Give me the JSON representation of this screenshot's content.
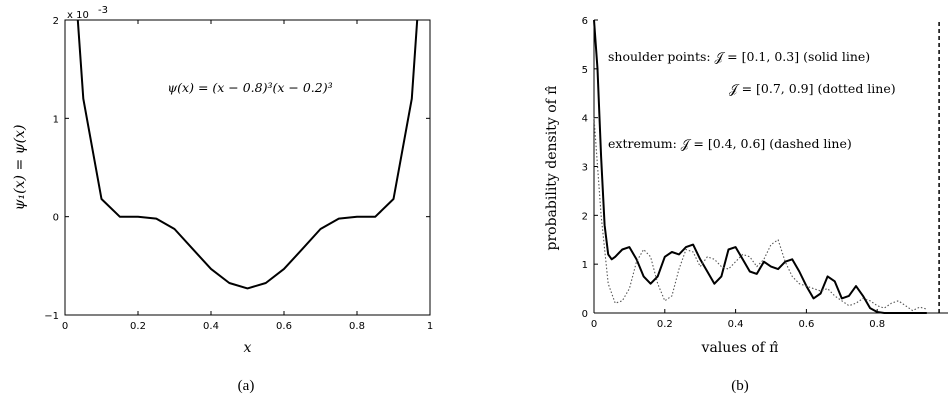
{
  "chart_data": [
    {
      "type": "line",
      "caption": "(a)",
      "xlabel": "x",
      "ylabel": "ψ₁(x) = ψ(x)",
      "xlim": [
        0,
        1
      ],
      "ylim": [
        -0.001,
        0.002
      ],
      "y_multiplier_label": "x 10",
      "y_multiplier_exp": "-3",
      "x_ticks": [
        "0",
        "0.2",
        "0.4",
        "0.6",
        "0.8",
        "1"
      ],
      "y_ticks": [
        "−1",
        "0",
        "1",
        "2"
      ],
      "annotation": "ψ(x) = (x − 0.8)³(x − 0.2)³",
      "grid": false,
      "series": [
        {
          "style": "solid",
          "x": [
            0.035,
            0.05,
            0.1,
            0.15,
            0.2,
            0.25,
            0.3,
            0.35,
            0.4,
            0.45,
            0.5,
            0.55,
            0.6,
            0.65,
            0.7,
            0.75,
            0.8,
            0.85,
            0.9,
            0.95,
            0.965
          ],
          "y": [
            0.002,
            0.0012,
            0.00018,
            0.0,
            0.0,
            -2e-05,
            -0.000125,
            -0.00033,
            -0.000531,
            -0.000675,
            -0.000729,
            -0.000675,
            -0.000531,
            -0.00033,
            -0.000125,
            -2e-05,
            0.0,
            0.0,
            0.00018,
            0.0012,
            0.002
          ]
        }
      ]
    },
    {
      "type": "line",
      "caption": "(b)",
      "xlabel": "values of π̂",
      "ylabel": "probability density of π̂",
      "xlim": [
        0,
        1
      ],
      "ylim": [
        0,
        6
      ],
      "x_ticks": [
        "0",
        "0.2",
        "0.4",
        "0.6",
        "0.8"
      ],
      "y_ticks": [
        "0",
        "1",
        "2",
        "3",
        "4",
        "5",
        "6"
      ],
      "annotations": [
        "shoulder points: 𝒥 = [0.1, 0.3] (solid line)",
        "𝒥 = [0.7, 0.9] (dotted line)",
        "extremum: 𝒥 = [0.4, 0.6] (dashed line)"
      ],
      "grid": false,
      "series": [
        {
          "style": "solid",
          "x": [
            0.0,
            0.01,
            0.02,
            0.03,
            0.04,
            0.05,
            0.06,
            0.08,
            0.1,
            0.12,
            0.14,
            0.16,
            0.18,
            0.2,
            0.22,
            0.24,
            0.26,
            0.28,
            0.3,
            0.32,
            0.34,
            0.36,
            0.38,
            0.4,
            0.42,
            0.44,
            0.46,
            0.48,
            0.5,
            0.52,
            0.54,
            0.56,
            0.58,
            0.6,
            0.62,
            0.64,
            0.66,
            0.68,
            0.7,
            0.72,
            0.74,
            0.76,
            0.78,
            0.8,
            0.82,
            0.84,
            0.86,
            0.88,
            0.9,
            0.92,
            0.94
          ],
          "y": [
            6.0,
            5.0,
            3.2,
            1.8,
            1.2,
            1.1,
            1.15,
            1.3,
            1.35,
            1.1,
            0.75,
            0.6,
            0.75,
            1.15,
            1.25,
            1.2,
            1.35,
            1.4,
            1.1,
            0.85,
            0.6,
            0.75,
            1.3,
            1.35,
            1.1,
            0.85,
            0.8,
            1.05,
            0.95,
            0.9,
            1.05,
            1.1,
            0.85,
            0.55,
            0.3,
            0.4,
            0.75,
            0.65,
            0.3,
            0.35,
            0.55,
            0.35,
            0.1,
            0.02,
            0.0,
            0.0,
            0.0,
            0.0,
            0.0,
            0.0,
            0.0
          ]
        },
        {
          "style": "dotted",
          "x": [
            0.0,
            0.02,
            0.04,
            0.06,
            0.08,
            0.1,
            0.12,
            0.14,
            0.16,
            0.18,
            0.2,
            0.22,
            0.24,
            0.26,
            0.28,
            0.3,
            0.32,
            0.34,
            0.36,
            0.38,
            0.4,
            0.42,
            0.44,
            0.46,
            0.48,
            0.5,
            0.52,
            0.54,
            0.56,
            0.58,
            0.6,
            0.62,
            0.64,
            0.66,
            0.68,
            0.7,
            0.72,
            0.74,
            0.76,
            0.78,
            0.8,
            0.82,
            0.84,
            0.86,
            0.88,
            0.9,
            0.92,
            0.94
          ],
          "y": [
            4.0,
            2.0,
            0.6,
            0.2,
            0.25,
            0.5,
            1.05,
            1.3,
            1.15,
            0.6,
            0.25,
            0.35,
            0.9,
            1.3,
            1.25,
            0.95,
            1.15,
            1.1,
            0.95,
            0.9,
            1.05,
            1.2,
            1.15,
            0.95,
            1.1,
            1.4,
            1.5,
            1.05,
            0.75,
            0.6,
            0.55,
            0.5,
            0.45,
            0.5,
            0.35,
            0.25,
            0.15,
            0.2,
            0.3,
            0.25,
            0.15,
            0.1,
            0.2,
            0.25,
            0.15,
            0.05,
            0.12,
            0.08
          ]
        },
        {
          "style": "dashed",
          "x": [
            0.975,
            0.975
          ],
          "y": [
            0,
            6
          ]
        }
      ]
    }
  ]
}
